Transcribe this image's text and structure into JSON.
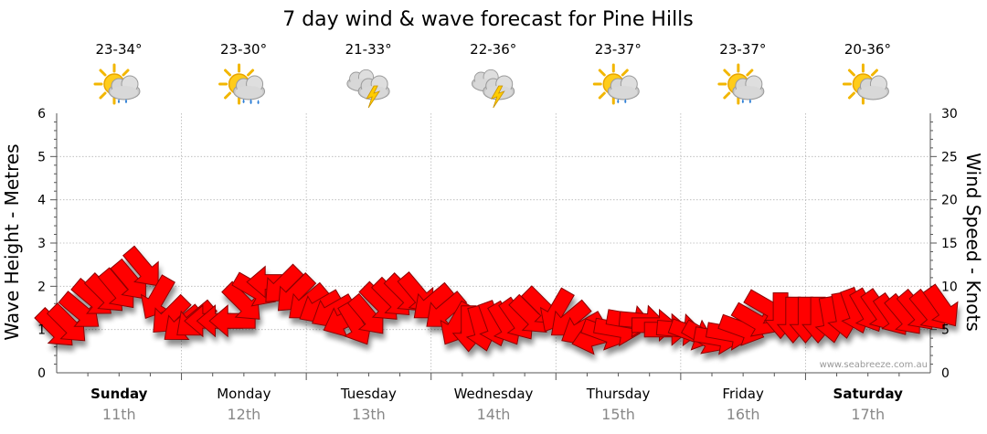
{
  "chart_data": {
    "type": "line",
    "title": "7 day wind & wave forecast for Pine Hills",
    "ylabel_left": "Wave Height - Metres",
    "ylabel_right": "Wind Speed - Knots",
    "ylim_left": [
      0,
      6
    ],
    "ylim_right": [
      0,
      30
    ],
    "yticks_left": [
      "0",
      "1",
      "2",
      "3",
      "4",
      "5",
      "6"
    ],
    "yticks_right": [
      "0",
      "5",
      "10",
      "15",
      "20",
      "25",
      "30"
    ],
    "grid": true,
    "days": [
      {
        "name": "Sunday",
        "date": "11th",
        "temp": "23-34°",
        "icon": "sun-cloud-rain-icon",
        "bold": true
      },
      {
        "name": "Monday",
        "date": "12th",
        "temp": "23-30°",
        "icon": "sun-cloud-heavy-rain-icon",
        "bold": false
      },
      {
        "name": "Tuesday",
        "date": "13th",
        "temp": "21-33°",
        "icon": "cloud-storm-icon",
        "bold": false
      },
      {
        "name": "Wednesday",
        "date": "14th",
        "temp": "22-36°",
        "icon": "cloud-storm-icon",
        "bold": false
      },
      {
        "name": "Thursday",
        "date": "15th",
        "temp": "23-37°",
        "icon": "sun-cloud-rain-icon",
        "bold": false
      },
      {
        "name": "Friday",
        "date": "16th",
        "temp": "23-37°",
        "icon": "sun-cloud-rain-icon",
        "bold": false
      },
      {
        "name": "Saturday",
        "date": "17th",
        "temp": "20-36°",
        "icon": "sun-cloud-icon",
        "bold": true
      }
    ],
    "series": [
      {
        "name": "Wind Speed - Knots",
        "color": "#ff0000",
        "points": [
          {
            "t": 0.0,
            "v": 5.0,
            "dir": 225
          },
          {
            "t": 0.25,
            "v": 5.5,
            "dir": 225
          },
          {
            "t": 0.5,
            "v": 7.0,
            "dir": 220
          },
          {
            "t": 0.75,
            "v": 8.5,
            "dir": 220
          },
          {
            "t": 1.0,
            "v": 9.0,
            "dir": 225
          },
          {
            "t": 1.25,
            "v": 9.5,
            "dir": 230
          },
          {
            "t": 1.5,
            "v": 10.5,
            "dir": 230
          },
          {
            "t": 1.75,
            "v": 12.0,
            "dir": 230
          },
          {
            "t": 2.0,
            "v": 8.5,
            "dir": 300
          },
          {
            "t": 2.25,
            "v": 6.5,
            "dir": 315
          },
          {
            "t": 2.5,
            "v": 5.5,
            "dir": 320
          },
          {
            "t": 2.75,
            "v": 6.0,
            "dir": 320
          },
          {
            "t": 3.0,
            "v": 6.0,
            "dir": 0
          },
          {
            "t": 3.25,
            "v": 6.0,
            "dir": 0
          },
          {
            "t": 3.5,
            "v": 6.0,
            "dir": 0
          },
          {
            "t": 3.75,
            "v": 8.0,
            "dir": 225
          },
          {
            "t": 4.0,
            "v": 9.5,
            "dir": 210
          },
          {
            "t": 4.25,
            "v": 10.5,
            "dir": 0
          },
          {
            "t": 4.5,
            "v": 10.0,
            "dir": 315
          },
          {
            "t": 4.75,
            "v": 9.0,
            "dir": 315
          },
          {
            "t": 5.0,
            "v": 8.0,
            "dir": 320
          },
          {
            "t": 5.25,
            "v": 7.5,
            "dir": 330
          },
          {
            "t": 5.5,
            "v": 7.0,
            "dir": 330
          },
          {
            "t": 5.75,
            "v": 6.0,
            "dir": 335
          },
          {
            "t": 6.0,
            "v": 5.5,
            "dir": 240
          },
          {
            "t": 6.25,
            "v": 6.5,
            "dir": 230
          },
          {
            "t": 6.5,
            "v": 8.0,
            "dir": 225
          },
          {
            "t": 6.75,
            "v": 8.5,
            "dir": 225
          },
          {
            "t": 7.0,
            "v": 9.0,
            "dir": 225
          },
          {
            "t": 7.25,
            "v": 9.0,
            "dir": 230
          },
          {
            "t": 7.5,
            "v": 8.0,
            "dir": 320
          },
          {
            "t": 7.75,
            "v": 7.0,
            "dir": 320
          },
          {
            "t": 8.0,
            "v": 5.5,
            "dir": 300
          },
          {
            "t": 8.25,
            "v": 5.0,
            "dir": 270
          },
          {
            "t": 8.5,
            "v": 5.0,
            "dir": 255
          },
          {
            "t": 8.75,
            "v": 5.5,
            "dir": 250
          },
          {
            "t": 9.0,
            "v": 5.5,
            "dir": 240
          },
          {
            "t": 9.25,
            "v": 6.0,
            "dir": 235
          },
          {
            "t": 9.5,
            "v": 6.5,
            "dir": 225
          },
          {
            "t": 9.75,
            "v": 7.5,
            "dir": 225
          },
          {
            "t": 10.0,
            "v": 7.0,
            "dir": 300
          },
          {
            "t": 10.25,
            "v": 6.0,
            "dir": 320
          },
          {
            "t": 10.5,
            "v": 5.0,
            "dir": 330
          },
          {
            "t": 10.75,
            "v": 4.0,
            "dir": 345
          },
          {
            "t": 11.0,
            "v": 4.5,
            "dir": 200
          },
          {
            "t": 11.25,
            "v": 5.0,
            "dir": 190
          },
          {
            "t": 11.5,
            "v": 6.0,
            "dir": 190
          },
          {
            "t": 11.75,
            "v": 6.0,
            "dir": 185
          },
          {
            "t": 12.0,
            "v": 5.5,
            "dir": 180
          },
          {
            "t": 12.25,
            "v": 5.0,
            "dir": 180
          },
          {
            "t": 12.5,
            "v": 5.0,
            "dir": 185
          },
          {
            "t": 12.75,
            "v": 4.5,
            "dir": 200
          },
          {
            "t": 13.0,
            "v": 4.0,
            "dir": 210
          },
          {
            "t": 13.25,
            "v": 4.0,
            "dir": 190
          },
          {
            "t": 13.5,
            "v": 4.5,
            "dir": 190
          },
          {
            "t": 13.75,
            "v": 5.0,
            "dir": 200
          },
          {
            "t": 14.0,
            "v": 6.0,
            "dir": 210
          },
          {
            "t": 14.25,
            "v": 7.5,
            "dir": 210
          },
          {
            "t": 14.5,
            "v": 6.5,
            "dir": 270
          },
          {
            "t": 14.75,
            "v": 6.0,
            "dir": 270
          },
          {
            "t": 15.0,
            "v": 6.0,
            "dir": 270
          },
          {
            "t": 15.25,
            "v": 6.0,
            "dir": 270
          },
          {
            "t": 15.5,
            "v": 6.0,
            "dir": 260
          },
          {
            "t": 15.75,
            "v": 6.5,
            "dir": 260
          },
          {
            "t": 16.0,
            "v": 7.0,
            "dir": 250
          },
          {
            "t": 16.25,
            "v": 7.0,
            "dir": 240
          },
          {
            "t": 16.5,
            "v": 7.0,
            "dir": 235
          },
          {
            "t": 16.75,
            "v": 6.5,
            "dir": 235
          },
          {
            "t": 17.0,
            "v": 6.5,
            "dir": 230
          },
          {
            "t": 17.25,
            "v": 7.0,
            "dir": 230
          },
          {
            "t": 17.5,
            "v": 7.0,
            "dir": 230
          },
          {
            "t": 17.75,
            "v": 7.5,
            "dir": 235
          }
        ]
      }
    ],
    "credit": "www.seabreeze.com.au"
  }
}
